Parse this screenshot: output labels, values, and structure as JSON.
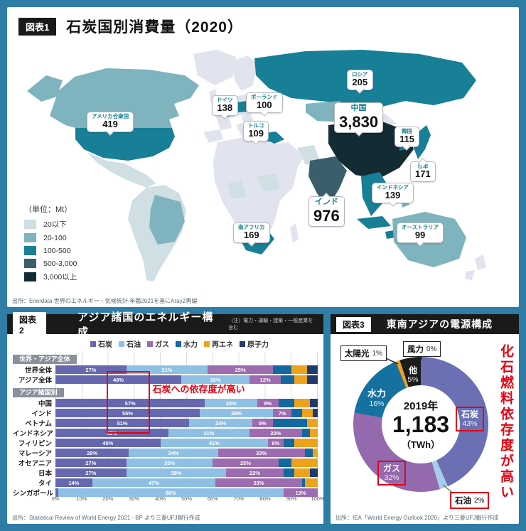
{
  "colors": {
    "frame": "#2e7da7",
    "red": "#e60012",
    "map": {
      "b1": "#cfdfe4",
      "b2": "#7fb3bd",
      "b3": "#177f96",
      "b4": "#3a5f6b",
      "b5": "#132b33",
      "nd": "#e1e4ee"
    }
  },
  "panel1": {
    "tag": "図表1",
    "title": "石炭国別消費量（2020）",
    "legend_title": "（単位：Mt）",
    "source": "出所：Enerdata 世界のエネルギー・気候統計-年鑑2021を基にArayZ再編",
    "callouts": [
      {
        "id": "usa",
        "name": "アメリカ合衆国",
        "value": "419"
      },
      {
        "id": "germany",
        "name": "ドイツ",
        "value": "138"
      },
      {
        "id": "poland",
        "name": "ポーランド",
        "value": "100"
      },
      {
        "id": "turkey",
        "name": "トルコ",
        "value": "109"
      },
      {
        "id": "russia",
        "name": "ロシア",
        "value": "205"
      },
      {
        "id": "china",
        "name": "中国",
        "value": "3,830"
      },
      {
        "id": "korea",
        "name": "韓国",
        "value": "115"
      },
      {
        "id": "japan",
        "name": "日本",
        "value": "171"
      },
      {
        "id": "indonesia",
        "name": "インドネシア",
        "value": "139"
      },
      {
        "id": "india",
        "name": "インド",
        "value": "976"
      },
      {
        "id": "australia",
        "name": "オーストラリア",
        "value": "99"
      },
      {
        "id": "southafrica",
        "name": "南アフリカ",
        "value": "169"
      }
    ]
  },
  "panel2": {
    "tag": "図表2",
    "title": "アジア諸国のエネルギー構成",
    "note": "（注）電力・運輸・建築・一般産業を含む",
    "annotation": "石炭への依存度が高い",
    "source": "出所：Statistical Review of World Energy 2021 - BP より三菱UFJ銀行作成"
  },
  "panel3": {
    "tag": "図表3",
    "title": "東南アジアの電源構成",
    "annotation": "化石燃料依存度が高い",
    "source": "出所：IEA「World Energy Outlook 2020」より三菱UFJ銀行作成"
  },
  "chart_data": [
    {
      "type": "heatmap",
      "subtype": "choropleth-world-map",
      "title": "石炭国別消費量（2020）",
      "unit": "Mt",
      "bins": [
        {
          "label": "20以下",
          "color": "#cfdfe4"
        },
        {
          "label": "20-100",
          "color": "#7fb3bd"
        },
        {
          "label": "100-500",
          "color": "#177f96"
        },
        {
          "label": "500-3,000",
          "color": "#3a5f6b"
        },
        {
          "label": "3,000以上",
          "color": "#132b33"
        }
      ],
      "values": {
        "アメリカ合衆国": 419,
        "ドイツ": 138,
        "ポーランド": 100,
        "トルコ": 109,
        "ロシア": 205,
        "中国": 3830,
        "韓国": 115,
        "日本": 171,
        "インドネシア": 139,
        "インド": 976,
        "オーストラリア": 99,
        "南アフリカ": 169
      }
    },
    {
      "type": "bar",
      "stacked": true,
      "horizontal": true,
      "title": "アジア諸国のエネルギー構成",
      "x_ticks": [
        "0%",
        "10%",
        "20%",
        "30%",
        "40%",
        "50%",
        "60%",
        "70%",
        "80%",
        "90%",
        "100%"
      ],
      "xlim": [
        0,
        100
      ],
      "series": [
        {
          "name": "石炭",
          "color": "#6568ae"
        },
        {
          "name": "石油",
          "color": "#8fc0e4"
        },
        {
          "name": "ガス",
          "color": "#9c6bb0"
        },
        {
          "name": "水力",
          "color": "#13689f"
        },
        {
          "name": "再エネ",
          "color": "#eda21e"
        },
        {
          "name": "原子力",
          "color": "#1f3a6d"
        }
      ],
      "rows": [
        {
          "label": "世界全体",
          "section_before": "世界・アジア全体",
          "values": [
            27,
            31,
            25,
            7,
            6,
            4
          ]
        },
        {
          "label": "アジア全体",
          "values": [
            48,
            26,
            12,
            5,
            5,
            4
          ]
        },
        {
          "label": "中国",
          "section_before": "アジア諸国別",
          "values": [
            57,
            20,
            8,
            6,
            6,
            3
          ]
        },
        {
          "label": "インド",
          "values": [
            55,
            28,
            7,
            4,
            4,
            2
          ]
        },
        {
          "label": "ベトナム",
          "values": [
            51,
            24,
            8,
            13,
            4,
            0
          ]
        },
        {
          "label": "インドネシア",
          "values": [
            43,
            31,
            20,
            3,
            3,
            0
          ]
        },
        {
          "label": "フィリピン",
          "values": [
            40,
            41,
            6,
            4,
            9,
            0
          ]
        },
        {
          "label": "マレーシア",
          "values": [
            28,
            34,
            33,
            3,
            2,
            0
          ]
        },
        {
          "label": "オセアニア",
          "values": [
            27,
            33,
            25,
            5,
            10,
            0
          ]
        },
        {
          "label": "日本",
          "values": [
            27,
            38,
            22,
            4,
            6,
            3
          ]
        },
        {
          "label": "タイ",
          "values": [
            14,
            47,
            33,
            1,
            5,
            0
          ]
        },
        {
          "label": "シンガポール",
          "values": [
            1,
            86,
            13,
            0,
            0,
            0
          ]
        }
      ]
    },
    {
      "type": "pie",
      "subtype": "donut",
      "title": "東南アジアの電源構成",
      "center": {
        "year": "2019年",
        "value": "1,183",
        "unit": "（TWh）"
      },
      "slices": [
        {
          "label": "石炭",
          "pct": 43,
          "pct_label": "43%",
          "color": "#6b70b4"
        },
        {
          "label": "石油",
          "pct": 2,
          "pct_label": "2%",
          "color": "#a9cde9"
        },
        {
          "label": "ガス",
          "pct": 32,
          "pct_label": "32%",
          "color": "#9569ae"
        },
        {
          "label": "水力",
          "pct": 16,
          "pct_label": "16%",
          "color": "#15719f"
        },
        {
          "label": "太陽光",
          "pct": 1,
          "pct_label": "1%",
          "color": "#efa11f"
        },
        {
          "label": "他",
          "pct": 5,
          "pct_label": "5%",
          "color": "#1b1b1b"
        },
        {
          "label": "風力",
          "pct": 0,
          "pct_label": "0%",
          "color": "#1b1b1b"
        }
      ]
    }
  ]
}
